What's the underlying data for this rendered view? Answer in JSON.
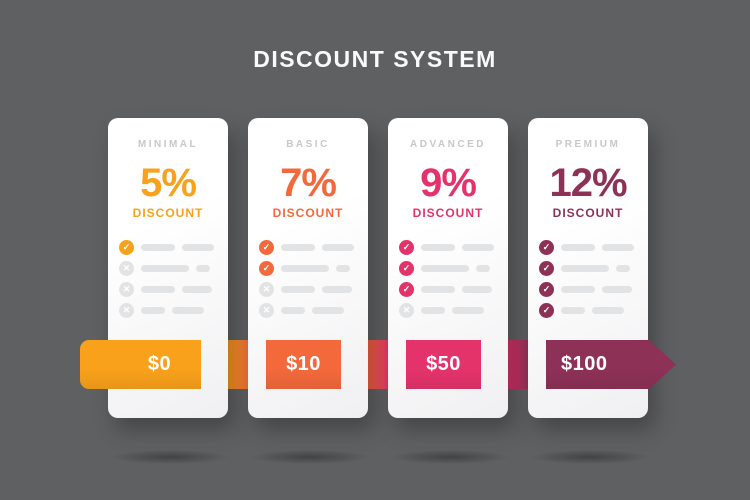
{
  "page": {
    "title": "DISCOUNT SYSTEM",
    "background_color": "#5F6062",
    "card_title_color": "#C7C8CA",
    "feature_bar_color": "#E2E3E5",
    "disabled_icon_color": "#E2E3E5"
  },
  "icons": {
    "check": "✓",
    "cross": "✕"
  },
  "feature_bar_rows": [
    [
      34,
      32
    ],
    [
      48,
      14
    ],
    [
      34,
      30
    ],
    [
      24,
      32
    ]
  ],
  "plans": [
    {
      "name": "MINIMAL",
      "percent": "5%",
      "discount_label": "DISCOUNT",
      "price": "$0",
      "accent": "#F9A11B",
      "checks": [
        true,
        false,
        false,
        false
      ]
    },
    {
      "name": "BASIC",
      "percent": "7%",
      "discount_label": "DISCOUNT",
      "price": "$10",
      "accent": "#F3693B",
      "checks": [
        true,
        true,
        false,
        false
      ]
    },
    {
      "name": "ADVANCED",
      "percent": "9%",
      "discount_label": "DISCOUNT",
      "price": "$50",
      "accent": "#E4336B",
      "checks": [
        true,
        true,
        true,
        false
      ]
    },
    {
      "name": "PREMIUM",
      "percent": "12%",
      "discount_label": "DISCOUNT",
      "price": "$100",
      "accent": "#8E3157",
      "checks": [
        true,
        true,
        true,
        true
      ]
    }
  ]
}
